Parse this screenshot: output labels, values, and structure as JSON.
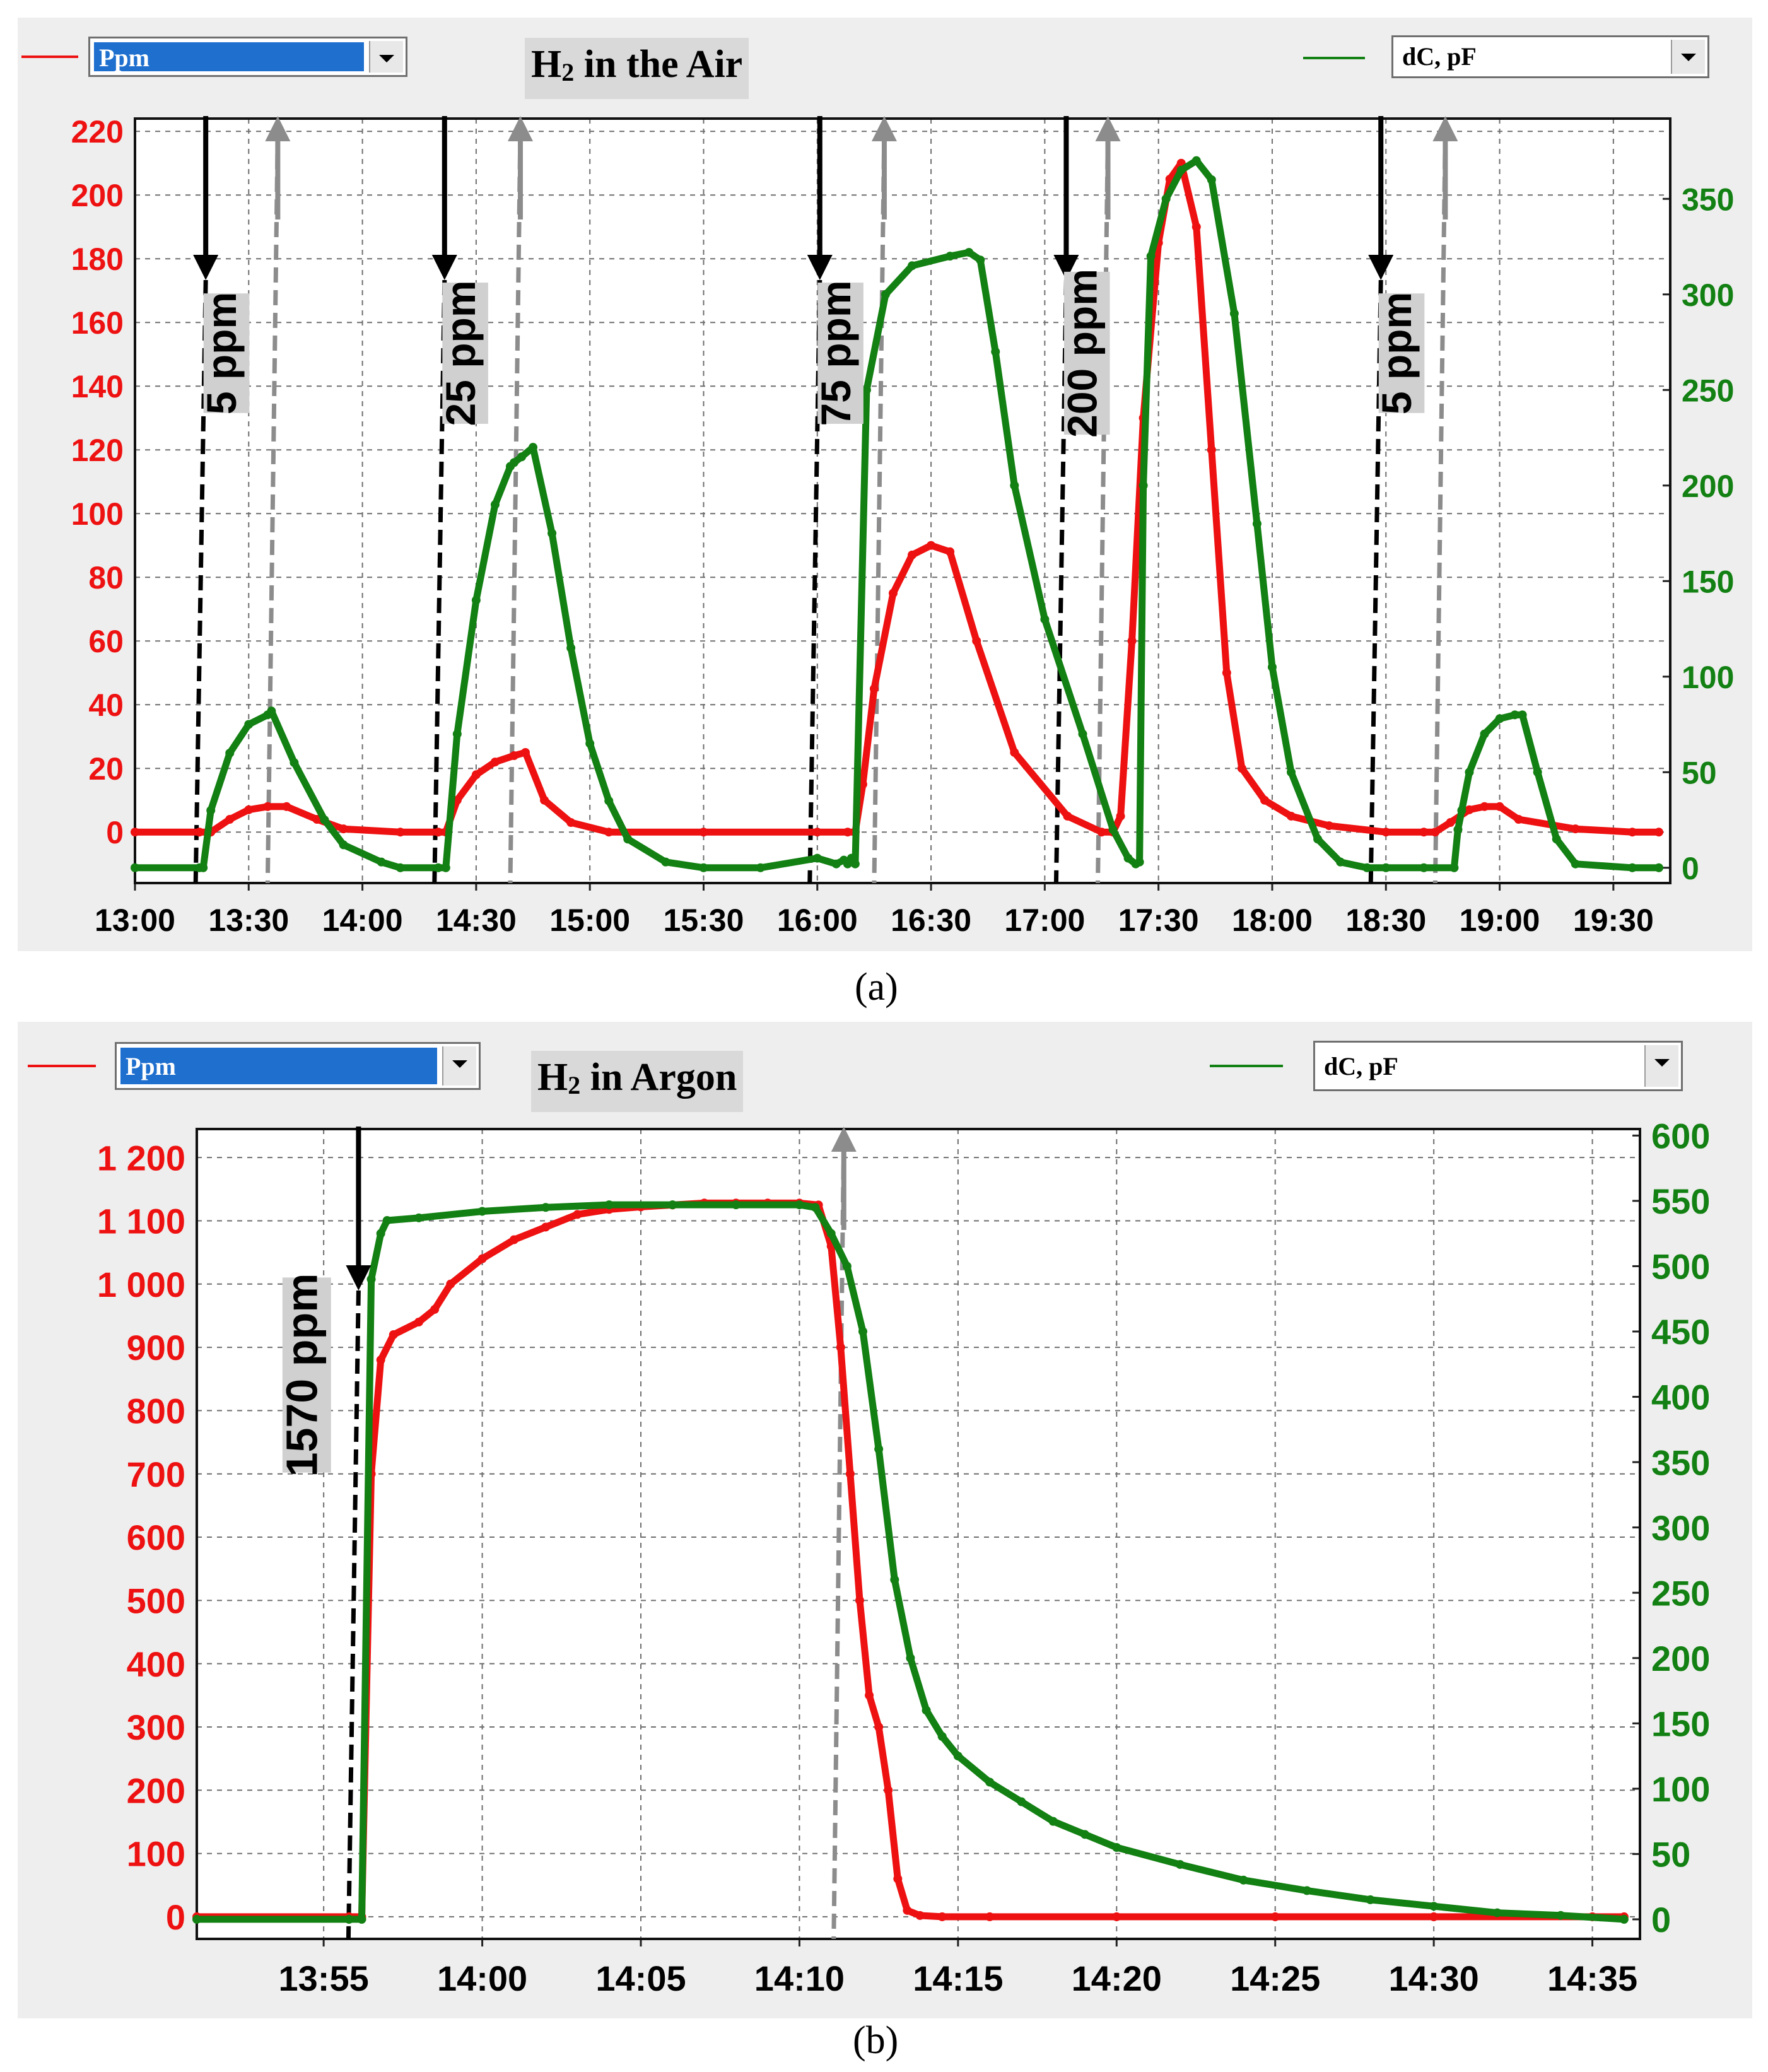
{
  "colors": {
    "red": "#ee1111",
    "green": "#128012",
    "black_arrow": "#000000",
    "gray_arrow": "#8c8c8c",
    "selection": "#1f6fcf"
  },
  "captions": [
    "(a)",
    "(b)"
  ],
  "chart_data": [
    {
      "type": "line",
      "title": "H₂ in the Air",
      "title_base": "H",
      "title_sub": "2",
      "title_rest": " in the Air",
      "left_selector": "Ppm",
      "right_selector": "dC, pF",
      "xlim": [
        0,
        405
      ],
      "x_tick_minutes": [
        0,
        30,
        60,
        90,
        120,
        150,
        180,
        210,
        240,
        270,
        300,
        330,
        360,
        390
      ],
      "x_tick_labels": [
        "13:00",
        "13:30",
        "14:00",
        "14:30",
        "15:00",
        "15:30",
        "16:00",
        "16:30",
        "17:00",
        "17:30",
        "18:00",
        "18:30",
        "19:00",
        "19:30"
      ],
      "ylim_left": [
        -16,
        224
      ],
      "y_left_ticks": [
        0,
        20,
        40,
        60,
        80,
        100,
        120,
        140,
        160,
        180,
        200,
        220
      ],
      "y_left_labels": [
        "0",
        "20",
        "40",
        "60",
        "80",
        "100",
        "120",
        "140",
        "160",
        "180",
        "200",
        "220"
      ],
      "ylim_right": [
        -8,
        392
      ],
      "y_right_ticks": [
        0,
        50,
        100,
        150,
        200,
        250,
        300,
        350
      ],
      "y_right_labels": [
        "0",
        "50",
        "100",
        "150",
        "200",
        "250",
        "300",
        "350"
      ],
      "grid": true,
      "series": [
        {
          "name": "Ppm",
          "axis": "left",
          "color": "red",
          "x": [
            0,
            17,
            20,
            25,
            30,
            35,
            40,
            48,
            55,
            70,
            80,
            82,
            85,
            90,
            95,
            100,
            103,
            108,
            115,
            125,
            150,
            180,
            188,
            190,
            192,
            195,
            200,
            205,
            210,
            215,
            222,
            232,
            246,
            255,
            258,
            260,
            263,
            266,
            270,
            273,
            276,
            280,
            284,
            288,
            292,
            298,
            305,
            315,
            330,
            340,
            343,
            347,
            352,
            356,
            360,
            365,
            380,
            395,
            402
          ],
          "y": [
            0,
            0,
            0,
            4,
            7,
            8,
            8,
            4,
            1,
            0,
            0,
            0,
            10,
            18,
            22,
            24,
            25,
            10,
            3,
            0,
            0,
            0,
            0,
            0,
            15,
            45,
            75,
            87,
            90,
            88,
            60,
            25,
            5,
            0,
            0,
            5,
            60,
            130,
            185,
            205,
            210,
            190,
            120,
            50,
            20,
            10,
            5,
            2,
            0,
            0,
            0,
            3,
            7,
            8,
            8,
            4,
            1,
            0,
            0
          ]
        },
        {
          "name": "dC, pF",
          "axis": "right",
          "color": "green",
          "x": [
            0,
            17,
            18,
            20,
            25,
            30,
            35,
            36,
            42,
            50,
            55,
            65,
            70,
            80,
            82,
            85,
            90,
            95,
            99,
            100,
            102,
            105,
            110,
            115,
            120,
            125,
            130,
            140,
            150,
            165,
            180,
            185,
            187,
            188,
            189,
            190,
            193,
            198,
            205,
            215,
            220,
            223,
            227,
            232,
            240,
            250,
            258,
            262,
            264,
            265,
            266,
            268,
            272,
            276,
            280,
            284,
            290,
            296,
            300,
            305,
            312,
            318,
            325,
            330,
            340,
            348,
            349,
            350,
            352,
            356,
            360,
            364,
            366,
            370,
            375,
            380,
            395,
            402
          ],
          "y": [
            0,
            0,
            0,
            30,
            60,
            75,
            80,
            82,
            55,
            25,
            12,
            3,
            0,
            0,
            0,
            70,
            140,
            190,
            210,
            212,
            215,
            220,
            175,
            115,
            65,
            35,
            15,
            3,
            0,
            0,
            5,
            2,
            4,
            2,
            5,
            2,
            250,
            300,
            315,
            320,
            322,
            318,
            270,
            200,
            130,
            70,
            20,
            5,
            2,
            3,
            200,
            320,
            350,
            365,
            370,
            360,
            290,
            180,
            105,
            50,
            15,
            3,
            0,
            0,
            0,
            0,
            20,
            30,
            50,
            70,
            78,
            80,
            80,
            50,
            15,
            2,
            0,
            0
          ]
        }
      ],
      "annotations": [
        {
          "label": "5 ppm",
          "on_min": 17,
          "off_min": 36
        },
        {
          "label": "25 ppm",
          "on_min": 80,
          "off_min": 100
        },
        {
          "label": "75 ppm",
          "on_min": 179,
          "off_min": 196
        },
        {
          "label": "200 ppm",
          "on_min": 244,
          "off_min": 255
        },
        {
          "label": "5 ppm",
          "on_min": 327,
          "off_min": 344
        }
      ]
    },
    {
      "type": "line",
      "title": "H₂ in Argon",
      "title_base": "H",
      "title_sub": "2",
      "title_rest": " in Argon",
      "left_selector": "Ppm",
      "right_selector": "dC, pF",
      "xlim": [
        51,
        96.5
      ],
      "x_tick_minutes": [
        55,
        60,
        65,
        70,
        75,
        80,
        85,
        90,
        95
      ],
      "x_tick_labels": [
        "13:55",
        "14:00",
        "14:05",
        "14:10",
        "14:15",
        "14:20",
        "14:25",
        "14:30",
        "14:35"
      ],
      "ylim_left": [
        -35,
        1245
      ],
      "y_left_ticks": [
        0,
        100,
        200,
        300,
        400,
        500,
        600,
        700,
        800,
        900,
        1000,
        1100,
        1200
      ],
      "y_left_labels": [
        "0",
        "100",
        "200",
        "300",
        "400",
        "500",
        "600",
        "700",
        "800",
        "900",
        "1 000",
        "1 100",
        "1 200"
      ],
      "ylim_right": [
        -15,
        605
      ],
      "y_right_ticks": [
        0,
        50,
        100,
        150,
        200,
        250,
        300,
        350,
        400,
        450,
        500,
        550,
        600
      ],
      "y_right_labels": [
        "0",
        "50",
        "100",
        "150",
        "200",
        "250",
        "300",
        "350",
        "400",
        "450",
        "500",
        "550",
        "600"
      ],
      "grid": true,
      "series": [
        {
          "name": "Ppm",
          "axis": "left",
          "color": "red",
          "x": [
            51,
            55.8,
            56.2,
            56.5,
            56.8,
            57.2,
            58.0,
            58.5,
            59.0,
            60.0,
            61.0,
            62.0,
            63.0,
            64.0,
            65.0,
            66.0,
            67.0,
            68.0,
            69.0,
            70.0,
            70.6,
            71.0,
            71.3,
            71.6,
            71.9,
            72.2,
            72.5,
            72.8,
            73.1,
            73.4,
            73.8,
            74.5,
            76.0,
            80.0,
            85.0,
            90.0,
            95.0,
            96.0
          ],
          "y": [
            0,
            0,
            0,
            700,
            880,
            920,
            940,
            960,
            1000,
            1040,
            1070,
            1090,
            1110,
            1118,
            1122,
            1125,
            1128,
            1128,
            1128,
            1128,
            1125,
            1060,
            900,
            700,
            500,
            350,
            300,
            200,
            60,
            10,
            2,
            0,
            0,
            0,
            0,
            0,
            0,
            0
          ]
        },
        {
          "name": "dC, pF",
          "axis": "right",
          "color": "green",
          "x": [
            51,
            55.8,
            56.2,
            56.5,
            56.8,
            57.0,
            58.0,
            60.0,
            62.0,
            64.0,
            66.0,
            68.0,
            70.0,
            70.5,
            71.0,
            71.5,
            72.0,
            72.5,
            73.0,
            73.5,
            74.0,
            74.5,
            75.0,
            76.0,
            77.0,
            78.0,
            79.0,
            80.0,
            82.0,
            84.0,
            86.0,
            88.0,
            90.0,
            92.0,
            94.0,
            96.0
          ],
          "y": [
            0,
            0,
            0,
            490,
            525,
            535,
            537,
            542,
            545,
            547,
            547,
            547,
            547,
            545,
            525,
            500,
            450,
            360,
            260,
            200,
            160,
            140,
            125,
            105,
            90,
            75,
            65,
            55,
            42,
            30,
            22,
            15,
            10,
            5,
            3,
            0
          ]
        }
      ],
      "annotations": [
        {
          "label": "1570 ppm",
          "on_min": 55.9,
          "off_min": 71.2
        }
      ]
    }
  ]
}
